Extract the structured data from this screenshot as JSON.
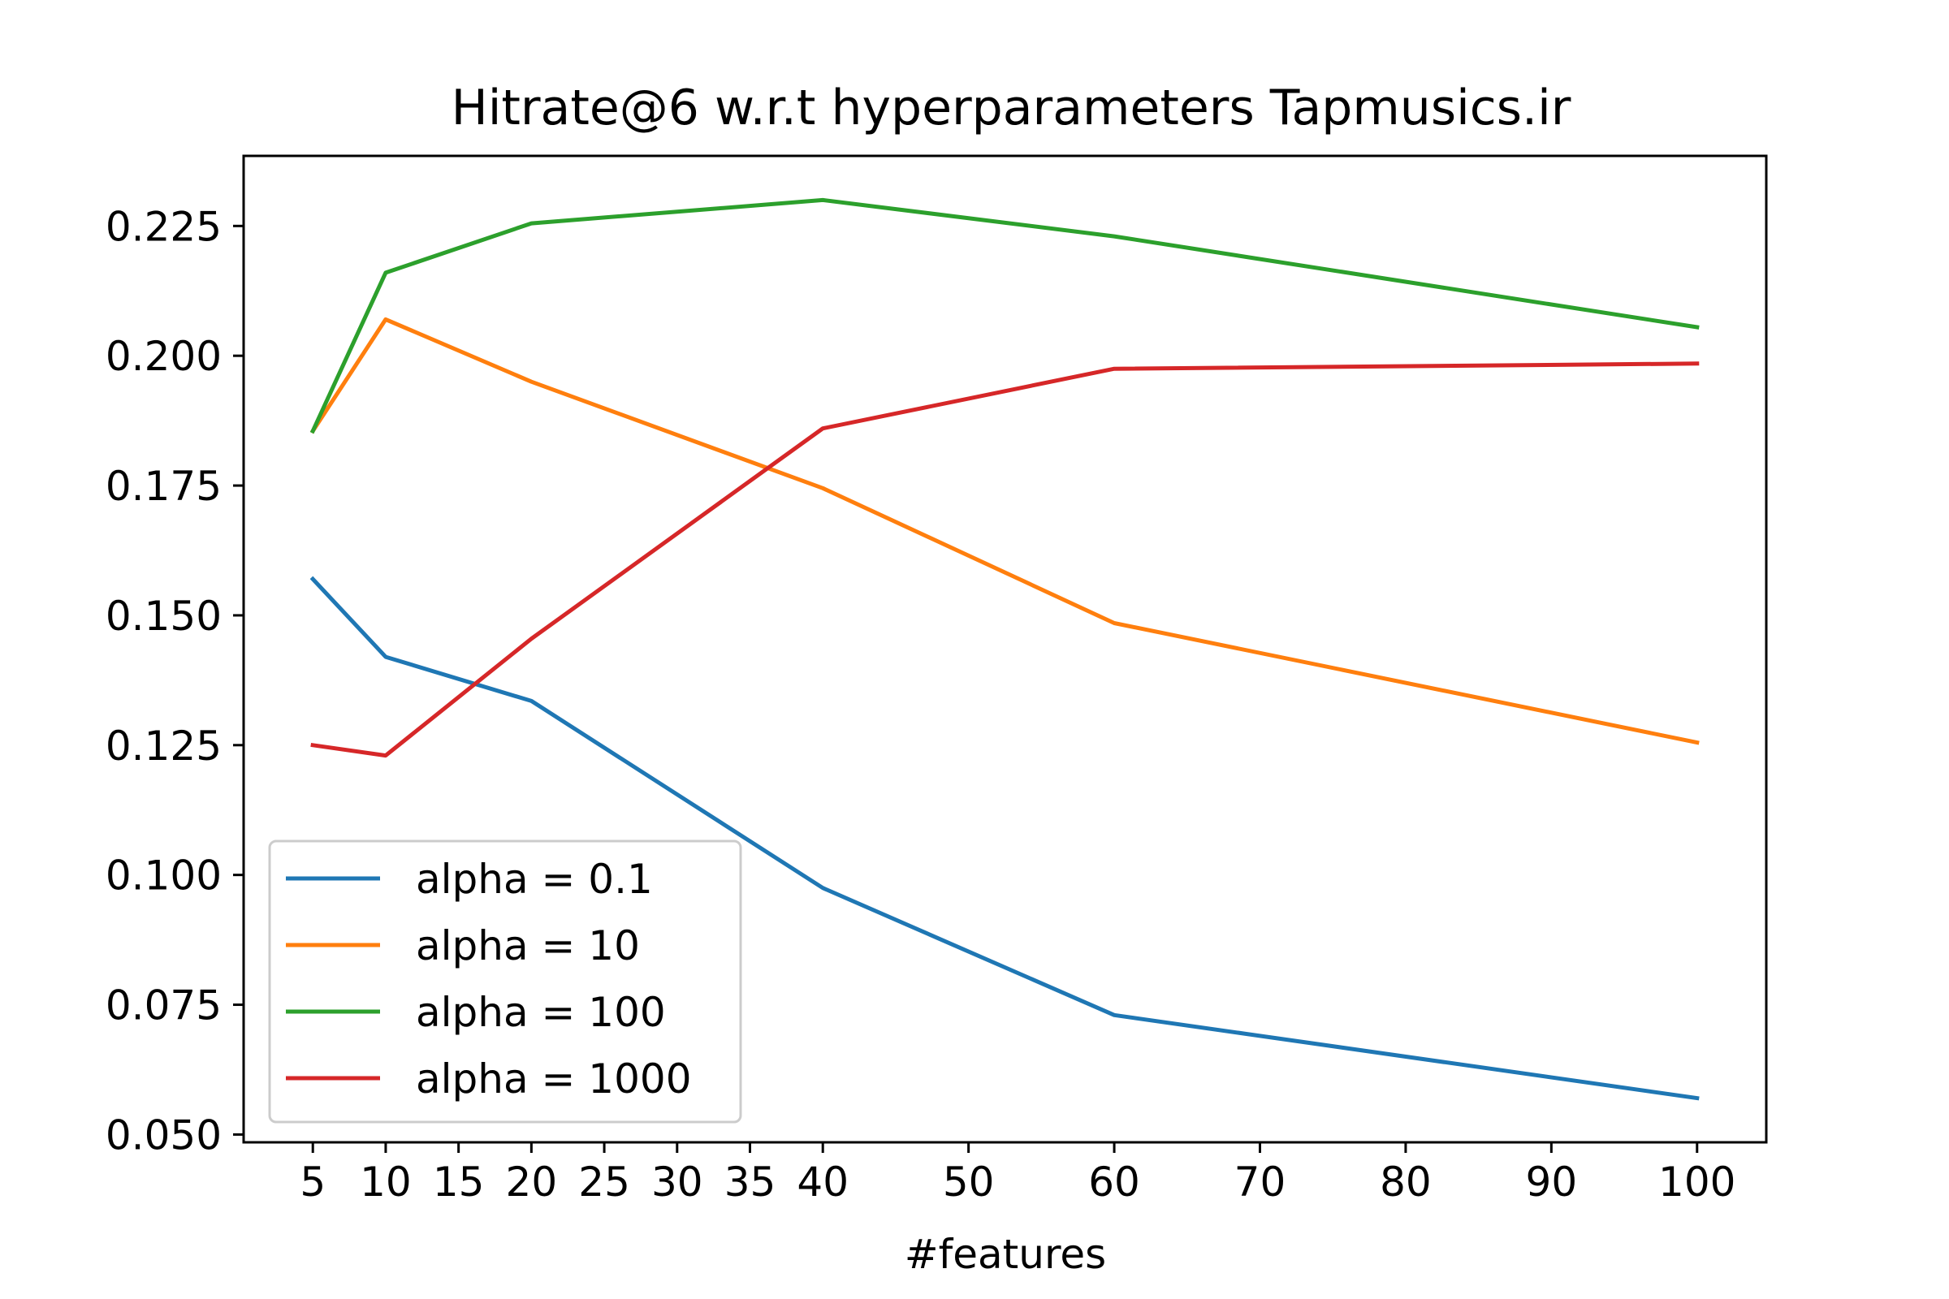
{
  "chart_data": {
    "type": "line",
    "title": "Hitrate@6 w.r.t hyperparameters Tapmusics.ir",
    "xlabel": "#features",
    "ylabel": "",
    "x": [
      5,
      10,
      20,
      40,
      60,
      100
    ],
    "xticks": [
      5,
      10,
      15,
      20,
      25,
      30,
      35,
      40,
      50,
      60,
      70,
      80,
      90,
      100
    ],
    "xtick_labels": [
      "5",
      "10",
      "15",
      "20",
      "25",
      "30",
      "35",
      "40",
      "50",
      "60",
      "70",
      "80",
      "90",
      "100"
    ],
    "yticks": [
      0.05,
      0.075,
      0.1,
      0.125,
      0.15,
      0.175,
      0.2,
      0.225
    ],
    "ytick_labels": [
      "0.050",
      "0.075",
      "0.100",
      "0.125",
      "0.150",
      "0.175",
      "0.200",
      "0.225"
    ],
    "xlim": [
      0.25,
      104.75
    ],
    "ylim": [
      0.0485,
      0.2385
    ],
    "grid": false,
    "legend_position": "lower-left",
    "series": [
      {
        "name": "alpha = 0.1",
        "color": "#1f77b4",
        "values": [
          0.157,
          0.142,
          0.1335,
          0.0975,
          0.073,
          0.057
        ]
      },
      {
        "name": "alpha = 10",
        "color": "#ff7f0e",
        "values": [
          0.1855,
          0.207,
          0.195,
          0.1745,
          0.1485,
          0.1255
        ]
      },
      {
        "name": "alpha = 100",
        "color": "#2ca02c",
        "values": [
          0.1855,
          0.216,
          0.2255,
          0.23,
          0.223,
          0.2055
        ]
      },
      {
        "name": "alpha = 1000",
        "color": "#d62728",
        "values": [
          0.125,
          0.123,
          0.1455,
          0.186,
          0.1975,
          0.1985
        ]
      }
    ]
  }
}
